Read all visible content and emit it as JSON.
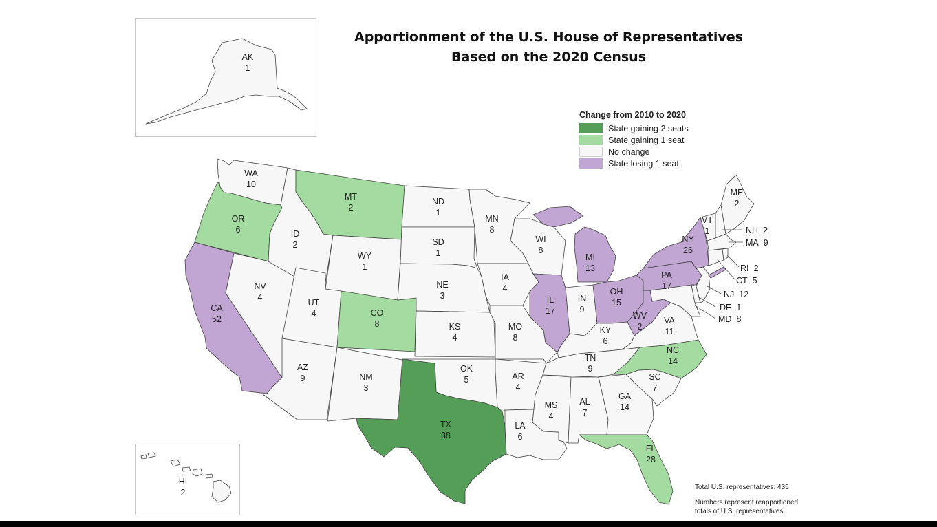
{
  "title": {
    "line1": "Apportionment of the U.S. House of Representatives",
    "line2": "Based on the 2020 Census"
  },
  "legend": {
    "title": "Change from 2010 to 2020",
    "items": [
      {
        "key": "gain2",
        "label": "State gaining 2 seats",
        "color": "#559e58"
      },
      {
        "key": "gain1",
        "label": "State gaining 1 seat",
        "color": "#a4dba0"
      },
      {
        "key": "none",
        "label": "No change",
        "color": "#f7f7f7"
      },
      {
        "key": "lose1",
        "label": "State losing 1 seat",
        "color": "#c1a5d2"
      }
    ]
  },
  "notes": {
    "total": "Total U.S. representatives: 435",
    "line1": "Numbers represent reapportioned",
    "line2": "totals of U.S. representatives."
  },
  "states": {
    "AK": {
      "abbr": "AK",
      "seats": "1",
      "change": "none"
    },
    "HI": {
      "abbr": "HI",
      "seats": "2",
      "change": "none"
    },
    "WA": {
      "abbr": "WA",
      "seats": "10",
      "change": "none"
    },
    "OR": {
      "abbr": "OR",
      "seats": "6",
      "change": "gain1"
    },
    "CA": {
      "abbr": "CA",
      "seats": "52",
      "change": "lose1"
    },
    "NV": {
      "abbr": "NV",
      "seats": "4",
      "change": "none"
    },
    "ID": {
      "abbr": "ID",
      "seats": "2",
      "change": "none"
    },
    "MT": {
      "abbr": "MT",
      "seats": "2",
      "change": "gain1"
    },
    "WY": {
      "abbr": "WY",
      "seats": "1",
      "change": "none"
    },
    "UT": {
      "abbr": "UT",
      "seats": "4",
      "change": "none"
    },
    "AZ": {
      "abbr": "AZ",
      "seats": "9",
      "change": "none"
    },
    "CO": {
      "abbr": "CO",
      "seats": "8",
      "change": "gain1"
    },
    "NM": {
      "abbr": "NM",
      "seats": "3",
      "change": "none"
    },
    "ND": {
      "abbr": "ND",
      "seats": "1",
      "change": "none"
    },
    "SD": {
      "abbr": "SD",
      "seats": "1",
      "change": "none"
    },
    "NE": {
      "abbr": "NE",
      "seats": "3",
      "change": "none"
    },
    "KS": {
      "abbr": "KS",
      "seats": "4",
      "change": "none"
    },
    "OK": {
      "abbr": "OK",
      "seats": "5",
      "change": "none"
    },
    "TX": {
      "abbr": "TX",
      "seats": "38",
      "change": "gain2"
    },
    "MN": {
      "abbr": "MN",
      "seats": "8",
      "change": "none"
    },
    "IA": {
      "abbr": "IA",
      "seats": "4",
      "change": "none"
    },
    "MO": {
      "abbr": "MO",
      "seats": "8",
      "change": "none"
    },
    "AR": {
      "abbr": "AR",
      "seats": "4",
      "change": "none"
    },
    "LA": {
      "abbr": "LA",
      "seats": "6",
      "change": "none"
    },
    "WI": {
      "abbr": "WI",
      "seats": "8",
      "change": "none"
    },
    "IL": {
      "abbr": "IL",
      "seats": "17",
      "change": "lose1"
    },
    "MI": {
      "abbr": "MI",
      "seats": "13",
      "change": "lose1"
    },
    "IN": {
      "abbr": "IN",
      "seats": "9",
      "change": "none"
    },
    "OH": {
      "abbr": "OH",
      "seats": "15",
      "change": "lose1"
    },
    "KY": {
      "abbr": "KY",
      "seats": "6",
      "change": "none"
    },
    "TN": {
      "abbr": "TN",
      "seats": "9",
      "change": "none"
    },
    "MS": {
      "abbr": "MS",
      "seats": "4",
      "change": "none"
    },
    "AL": {
      "abbr": "AL",
      "seats": "7",
      "change": "none"
    },
    "GA": {
      "abbr": "GA",
      "seats": "14",
      "change": "none"
    },
    "FL": {
      "abbr": "FL",
      "seats": "28",
      "change": "gain1"
    },
    "SC": {
      "abbr": "SC",
      "seats": "7",
      "change": "none"
    },
    "NC": {
      "abbr": "NC",
      "seats": "14",
      "change": "gain1"
    },
    "VA": {
      "abbr": "VA",
      "seats": "11",
      "change": "none"
    },
    "WV": {
      "abbr": "WV",
      "seats": "2",
      "change": "lose1"
    },
    "PA": {
      "abbr": "PA",
      "seats": "17",
      "change": "lose1"
    },
    "NY": {
      "abbr": "NY",
      "seats": "26",
      "change": "lose1"
    },
    "VT": {
      "abbr": "VT",
      "seats": "1",
      "change": "none"
    },
    "ME": {
      "abbr": "ME",
      "seats": "2",
      "change": "none"
    },
    "NH": {
      "abbr": "NH",
      "seats": "2",
      "change": "none"
    },
    "MA": {
      "abbr": "MA",
      "seats": "9",
      "change": "none"
    },
    "RI": {
      "abbr": "RI",
      "seats": "2",
      "change": "none"
    },
    "CT": {
      "abbr": "CT",
      "seats": "5",
      "change": "none"
    },
    "NJ": {
      "abbr": "NJ",
      "seats": "12",
      "change": "none"
    },
    "DE": {
      "abbr": "DE",
      "seats": "1",
      "change": "none"
    },
    "MD": {
      "abbr": "MD",
      "seats": "8",
      "change": "none"
    }
  }
}
